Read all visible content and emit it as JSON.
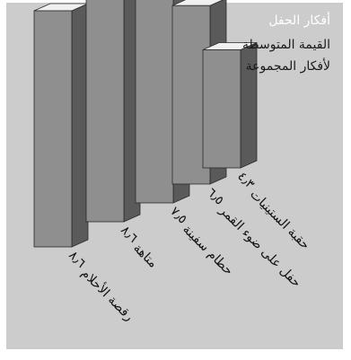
{
  "chart_data": {
    "type": "bar",
    "title": "أفكار الحفل",
    "subtitle": "القيمة المتوسطة لأفكار المجموعة",
    "categories": [
      "رقصة الأحلام",
      "متاهة",
      "حطام سفينة",
      "حفل على ضوء القمر",
      "حقبة الستينيات"
    ],
    "values": [
      8.6,
      8.6,
      7.5,
      6.5,
      4.3
    ],
    "value_labels": [
      "٨٫٦",
      "٨٫٦",
      "٧٫٥",
      "٦٫٥",
      "٤٫٣"
    ],
    "ylim": [
      0,
      10
    ],
    "grid": false,
    "legend": "none",
    "colors": {
      "background": "#cccccc",
      "bar_front": "#8f8f8f",
      "bar_side": "#5a5a5a",
      "bar_top": "#f0f0f0",
      "bar_edge": "#2a2a2a",
      "title": "#ffffff",
      "subtitle": "#1a1a1a",
      "labels": "#111111"
    }
  }
}
